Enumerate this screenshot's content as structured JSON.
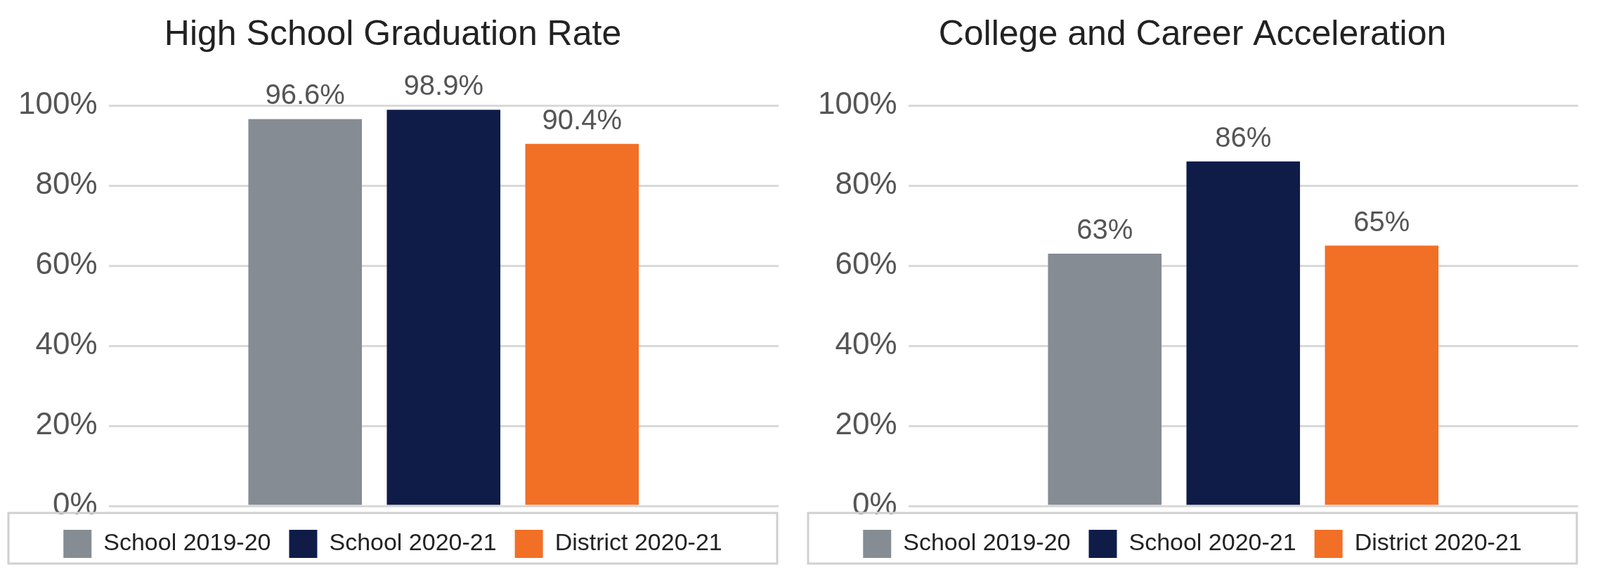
{
  "chart_data": [
    {
      "type": "bar",
      "title": "High School Graduation Rate",
      "categories": [
        null
      ],
      "series": [
        {
          "name": "School 2019-20",
          "color": "#858c94",
          "values": [
            96.6
          ],
          "value_labels": [
            "96.6%"
          ]
        },
        {
          "name": "School 2020-21",
          "color": "#0f1c47",
          "values": [
            98.9
          ],
          "value_labels": [
            "98.9%"
          ]
        },
        {
          "name": "District 2020-21",
          "color": "#f26f26",
          "values": [
            90.4
          ],
          "value_labels": [
            "90.4%"
          ]
        }
      ],
      "ylim": [
        0,
        100
      ],
      "yticks": [
        {
          "value": 0,
          "label": "0%"
        },
        {
          "value": 20,
          "label": "20%"
        },
        {
          "value": 40,
          "label": "40%"
        },
        {
          "value": 60,
          "label": "60%"
        },
        {
          "value": 80,
          "label": "80%"
        },
        {
          "value": 100,
          "label": "100%"
        }
      ],
      "grid": true,
      "legend": "bottom",
      "data_labels": true,
      "tick_labels": "y"
    },
    {
      "type": "bar",
      "title": "College and Career Acceleration",
      "categories": [
        null
      ],
      "series": [
        {
          "name": "School 2019-20",
          "color": "#858c94",
          "values": [
            63
          ],
          "value_labels": [
            "63%"
          ]
        },
        {
          "name": "School 2020-21",
          "color": "#0f1c47",
          "values": [
            86
          ],
          "value_labels": [
            "86%"
          ]
        },
        {
          "name": "District 2020-21",
          "color": "#f26f26",
          "values": [
            65
          ],
          "value_labels": [
            "65%"
          ]
        }
      ],
      "ylim": [
        0,
        100
      ],
      "yticks": [
        {
          "value": 0,
          "label": "0%"
        },
        {
          "value": 20,
          "label": "20%"
        },
        {
          "value": 40,
          "label": "40%"
        },
        {
          "value": 60,
          "label": "60%"
        },
        {
          "value": 80,
          "label": "80%"
        },
        {
          "value": 100,
          "label": "100%"
        }
      ],
      "grid": true,
      "legend": "bottom",
      "data_labels": true,
      "tick_labels": "y"
    }
  ]
}
